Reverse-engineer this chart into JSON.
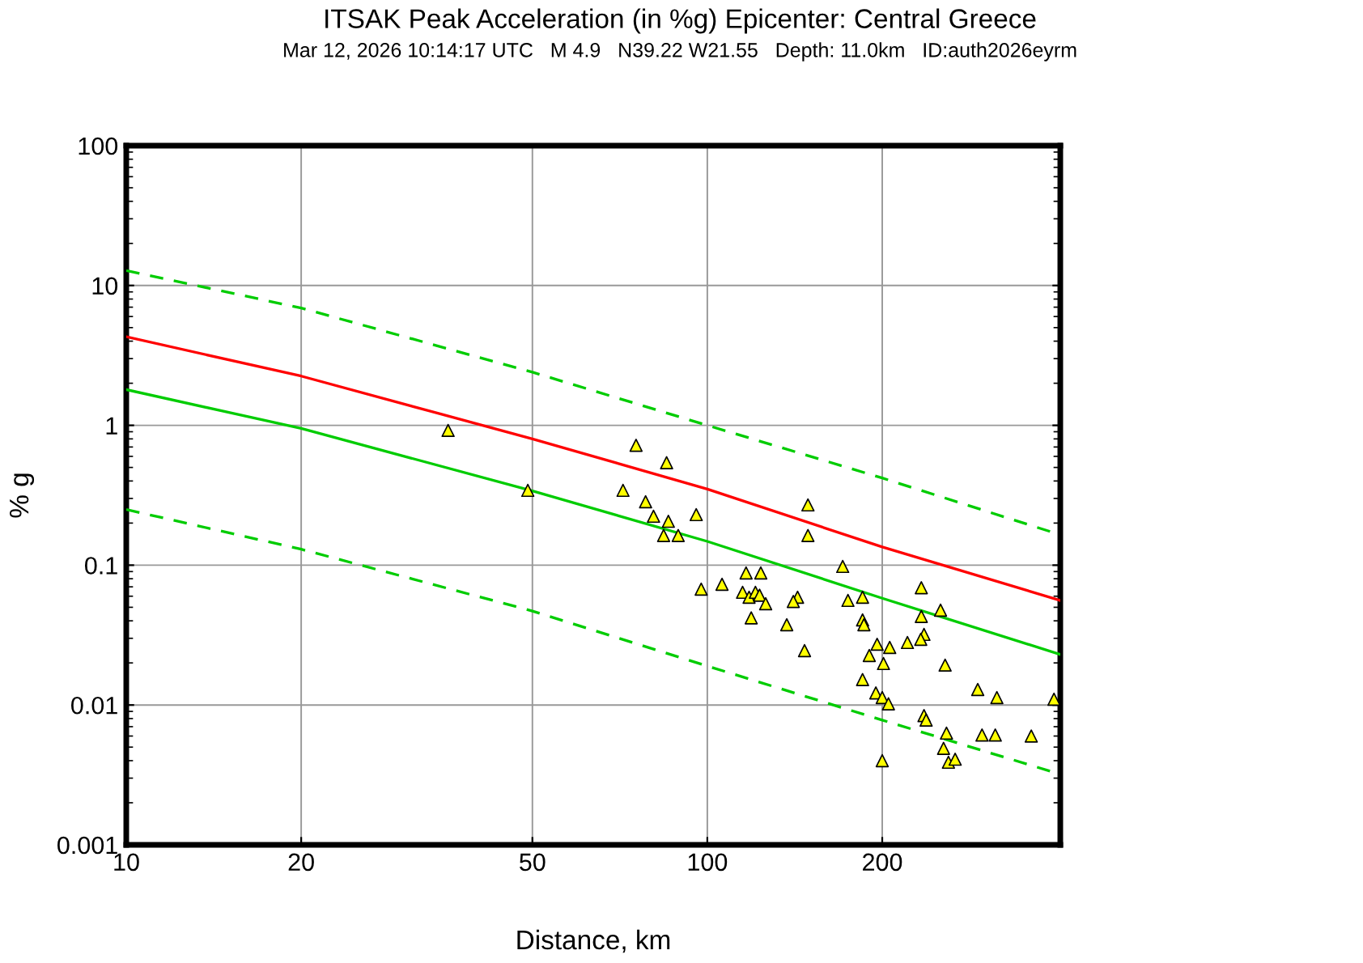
{
  "chart_data": {
    "type": "scatter",
    "title": "ITSAK Peak Acceleration (in %g) Epicenter: Central Greece",
    "subtitle": "Mar 12, 2026 10:14:17 UTC   M 4.9   N39.22 W21.55   Depth: 11.0km   ID:auth2026eyrm",
    "xlabel": "Distance, km",
    "ylabel": "% g",
    "log": "xy",
    "grid": true,
    "xlim": [
      10,
      405
    ],
    "ylim": [
      0.001,
      100
    ],
    "xticks": [
      10,
      20,
      50,
      100,
      200
    ],
    "yticks": [
      0.001,
      0.01,
      0.1,
      1,
      10,
      100
    ],
    "series": [
      {
        "type": "line",
        "color": "#00cc00",
        "line_style": "dashed",
        "x": [
          10,
          20,
          50,
          100,
          200,
          405
        ],
        "values": [
          12.8,
          6.9,
          2.4,
          1.0,
          0.42,
          0.165
        ]
      },
      {
        "type": "line",
        "color": "#ff0000",
        "line_style": "solid",
        "x": [
          10,
          20,
          50,
          100,
          200,
          405
        ],
        "values": [
          4.3,
          2.25,
          0.8,
          0.35,
          0.135,
          0.056
        ]
      },
      {
        "type": "line",
        "color": "#00cc00",
        "line_style": "solid",
        "x": [
          10,
          20,
          50,
          100,
          200,
          405
        ],
        "values": [
          1.8,
          0.95,
          0.34,
          0.148,
          0.058,
          0.023
        ]
      },
      {
        "type": "line",
        "color": "#00cc00",
        "line_style": "dashed",
        "x": [
          10,
          20,
          50,
          100,
          200,
          405
        ],
        "values": [
          0.25,
          0.13,
          0.047,
          0.019,
          0.0078,
          0.0032
        ]
      },
      {
        "color": "#ffff00",
        "marker": "triangle",
        "x": [
          35.8,
          49.1,
          75.4,
          71.6,
          78.3,
          85.1,
          80.8,
          85.7,
          84.1,
          89.1,
          95.7,
          97.6,
          106,
          116.6,
          123.6,
          115,
          118,
          121,
          123,
          126,
          119,
          137,
          143,
          140.6,
          147,
          149,
          149,
          171,
          233.5,
          174.6,
          185,
          185,
          186,
          233.5,
          252,
          236,
          233,
          221,
          196,
          206,
          190,
          201,
          256.6,
          185,
          195,
          200,
          205,
          292,
          315,
          395,
          236,
          238,
          258,
          297,
          313,
          361,
          255,
          260,
          267,
          200
        ],
        "values": [
          0.92,
          0.343,
          0.72,
          0.343,
          0.284,
          0.54,
          0.224,
          0.206,
          0.163,
          0.163,
          0.23,
          0.0674,
          0.073,
          0.088,
          0.088,
          0.064,
          0.059,
          0.064,
          0.061,
          0.053,
          0.042,
          0.0375,
          0.059,
          0.055,
          0.0245,
          0.27,
          0.163,
          0.098,
          0.069,
          0.056,
          0.059,
          0.0406,
          0.0375,
          0.043,
          0.0477,
          0.032,
          0.0295,
          0.028,
          0.0272,
          0.0258,
          0.0226,
          0.0198,
          0.0193,
          0.0152,
          0.0122,
          0.0113,
          0.0102,
          0.0129,
          0.0113,
          0.011,
          0.0084,
          0.0078,
          0.0063,
          0.0061,
          0.0061,
          0.006,
          0.0049,
          0.0039,
          0.0041,
          0.004
        ]
      }
    ]
  }
}
